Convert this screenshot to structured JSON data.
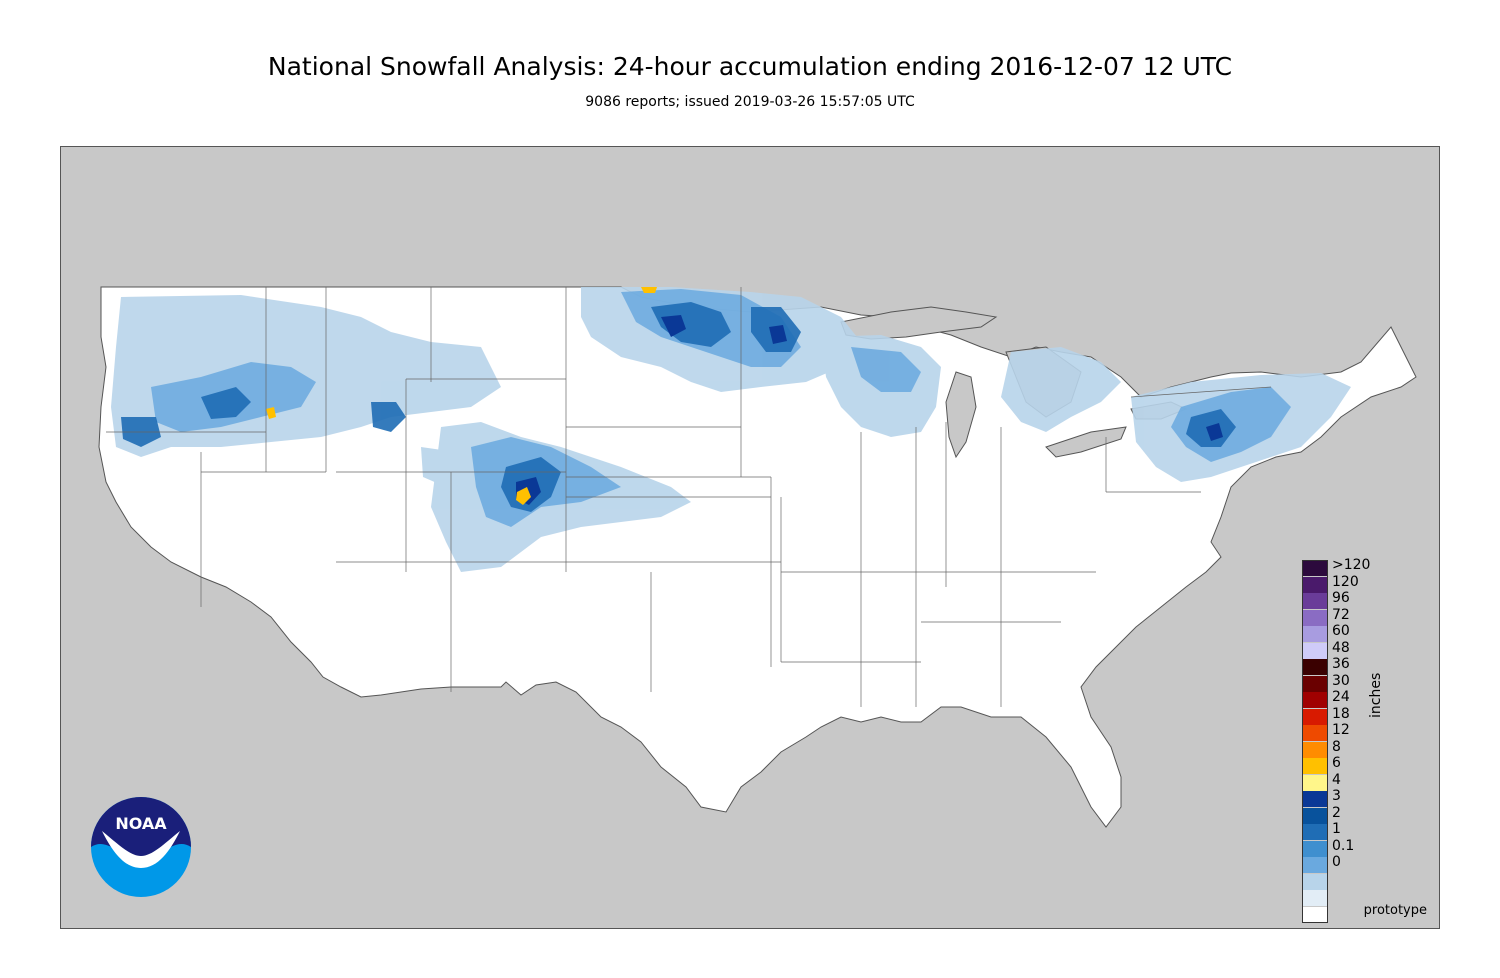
{
  "header": {
    "title": "National Snowfall Analysis: 24-hour accumulation ending 2016-12-07 12 UTC",
    "subtitle": "9086 reports; issued 2019-03-26 15:57:05 UTC"
  },
  "map": {
    "footer_label": "prototype",
    "land_color": "#ffffff",
    "outside_color": "#c8c8c8",
    "border_color": "#555555"
  },
  "legend": {
    "units_label": "inches",
    "entries": [
      {
        "label": ">120",
        "color": "#2c0a3d"
      },
      {
        "label": "120",
        "color": "#4a1a6b"
      },
      {
        "label": "96",
        "color": "#6a3c99"
      },
      {
        "label": "72",
        "color": "#8a6cc3"
      },
      {
        "label": "60",
        "color": "#a89ce0"
      },
      {
        "label": "48",
        "color": "#cfcbf8"
      },
      {
        "label": "36",
        "color": "#3a0000"
      },
      {
        "label": "30",
        "color": "#6a0000"
      },
      {
        "label": "24",
        "color": "#a00000"
      },
      {
        "label": "18",
        "color": "#d81a00"
      },
      {
        "label": "12",
        "color": "#ee4a00"
      },
      {
        "label": "8",
        "color": "#ff8c00"
      },
      {
        "label": "6",
        "color": "#ffc000"
      },
      {
        "label": "4",
        "color": "#fff68a"
      },
      {
        "label": "3",
        "color": "#0a3896"
      },
      {
        "label": "2",
        "color": "#08529c"
      },
      {
        "label": "1",
        "color": "#1f6db5"
      },
      {
        "label": "0.1",
        "color": "#3f8fcf"
      },
      {
        "label": "0",
        "color": "#6aa9df"
      }
    ],
    "tail_colors": [
      "#b8d4ea",
      "#e2edf6",
      "#ffffff"
    ]
  },
  "logo": {
    "text": "NOAA",
    "colors": {
      "top": "#1a1f7a",
      "bottom": "#0098e8"
    }
  }
}
